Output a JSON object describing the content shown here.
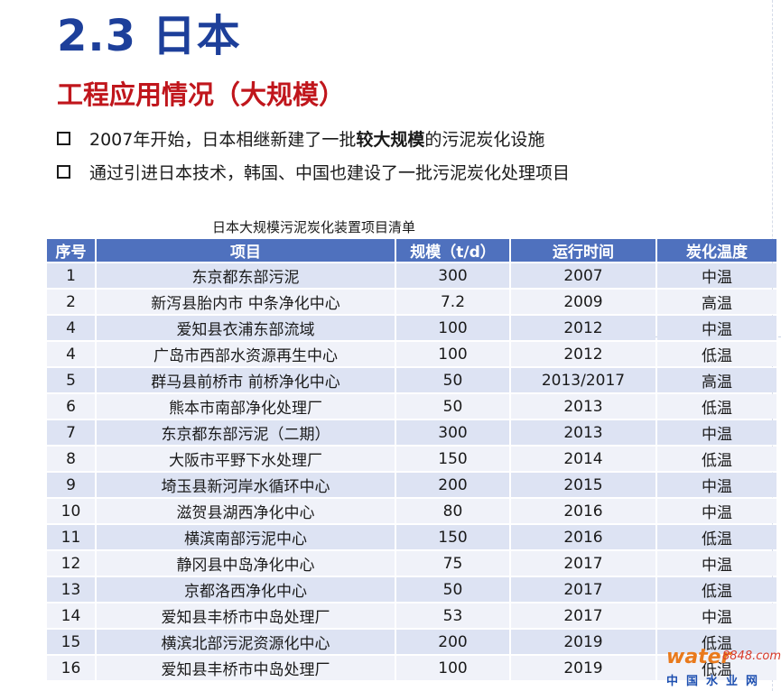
{
  "title": "2.3 日本",
  "subtitle": "工程应用情况（大规模）",
  "bullets": {
    "b1_pre": "2007年开始，日本相继新建了一批",
    "b1_bold": "较大规模",
    "b1_post": "的污泥炭化设施",
    "b2": "通过引进日本技术，韩国、中国也建设了一批污泥炭化处理项目"
  },
  "table": {
    "caption": "日本大规模污泥炭化装置项目清单",
    "headers": [
      "序号",
      "项目",
      "规模（t/d）",
      "运行时间",
      "炭化温度"
    ],
    "rows": [
      [
        "1",
        "东京都东部污泥",
        "300",
        "2007",
        "中温"
      ],
      [
        "2",
        "新泻县胎内市 中条净化中心",
        "7.2",
        "2009",
        "高温"
      ],
      [
        "4",
        "爱知县衣浦东部流域",
        "100",
        "2012",
        "中温"
      ],
      [
        "4",
        "广岛市西部水资源再生中心",
        "100",
        "2012",
        "低温"
      ],
      [
        "5",
        "群马县前桥市 前桥净化中心",
        "50",
        "2013/2017",
        "高温"
      ],
      [
        "6",
        "熊本市南部净化处理厂",
        "50",
        "2013",
        "低温"
      ],
      [
        "7",
        "东京都东部污泥（二期）",
        "300",
        "2013",
        "中温"
      ],
      [
        "8",
        "大阪市平野下水处理厂",
        "150",
        "2014",
        "低温"
      ],
      [
        "9",
        "埼玉县新河岸水循环中心",
        "200",
        "2015",
        "中温"
      ],
      [
        "10",
        "滋贺县湖西净化中心",
        "80",
        "2016",
        "中温"
      ],
      [
        "11",
        "横滨南部污泥中心",
        "150",
        "2016",
        "低温"
      ],
      [
        "12",
        "静冈县中岛净化中心",
        "75",
        "2017",
        "中温"
      ],
      [
        "13",
        "京都洛西净化中心",
        "50",
        "2017",
        "低温"
      ],
      [
        "14",
        "爱知县丰桥市中岛处理厂",
        "53",
        "2017",
        "中温"
      ],
      [
        "15",
        "横滨北部污泥资源化中心",
        "200",
        "2019",
        "低温"
      ],
      [
        "16",
        "爱知县丰桥市中岛处理厂",
        "100",
        "2019",
        "低温"
      ]
    ]
  },
  "watermark": {
    "brand": "water",
    "number": "8848.com",
    "cn": "中国水业网"
  }
}
